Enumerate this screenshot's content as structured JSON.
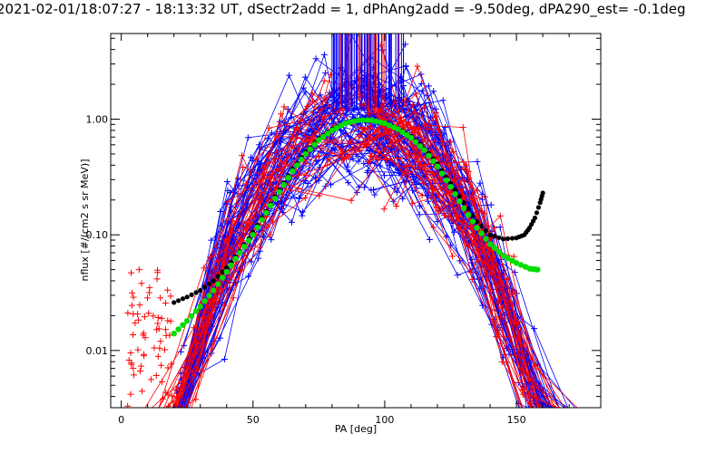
{
  "chart_data": {
    "type": "scatter",
    "title": "2021-02-01/18:07:27 - 18:13:32 UT, dSectr2add = 1, dPhAng2add = -9.50deg, dPA290_est=  -0.1deg",
    "xlabel": "PA [deg]",
    "ylabel": "nflux [#/(cm2 s sr MeV)]",
    "xlim": [
      -4,
      182
    ],
    "ylim": [
      0.0032,
      5.5
    ],
    "yscale": "log",
    "xticks": [
      0,
      50,
      100,
      150
    ],
    "yticks": [
      {
        "value": 0.01,
        "label": "0.01"
      },
      {
        "value": 0.1,
        "label": "0.10"
      },
      {
        "value": 1.0,
        "label": "1.00"
      }
    ],
    "grid": false,
    "colors": {
      "red_series": "#ff0000",
      "blue_series": "#0000ff",
      "black_fit": "#000000",
      "green_fit": "#00dd00",
      "axes": "#000000"
    },
    "fit_black": {
      "x": [
        20,
        25,
        30,
        35,
        40,
        45,
        50,
        55,
        60,
        65,
        70,
        75,
        80,
        85,
        90,
        95,
        100,
        105,
        110,
        115,
        120,
        125,
        130,
        135,
        140,
        145,
        150,
        153,
        155,
        157,
        159,
        160
      ],
      "y": [
        0.026,
        0.029,
        0.033,
        0.04,
        0.052,
        0.072,
        0.105,
        0.16,
        0.245,
        0.37,
        0.52,
        0.68,
        0.82,
        0.93,
        0.985,
        0.985,
        0.93,
        0.84,
        0.71,
        0.56,
        0.41,
        0.28,
        0.19,
        0.13,
        0.1,
        0.092,
        0.094,
        0.1,
        0.115,
        0.14,
        0.19,
        0.23
      ]
    },
    "fit_green": {
      "x": [
        20,
        25,
        30,
        35,
        40,
        45,
        50,
        55,
        60,
        65,
        70,
        75,
        80,
        85,
        90,
        95,
        100,
        105,
        110,
        115,
        120,
        125,
        130,
        135,
        140,
        145,
        150,
        155,
        158
      ],
      "y": [
        0.014,
        0.018,
        0.024,
        0.033,
        0.048,
        0.07,
        0.1,
        0.155,
        0.235,
        0.355,
        0.5,
        0.66,
        0.8,
        0.92,
        0.98,
        0.98,
        0.92,
        0.82,
        0.69,
        0.54,
        0.39,
        0.26,
        0.17,
        0.115,
        0.083,
        0.066,
        0.057,
        0.051,
        0.05
      ]
    }
  }
}
